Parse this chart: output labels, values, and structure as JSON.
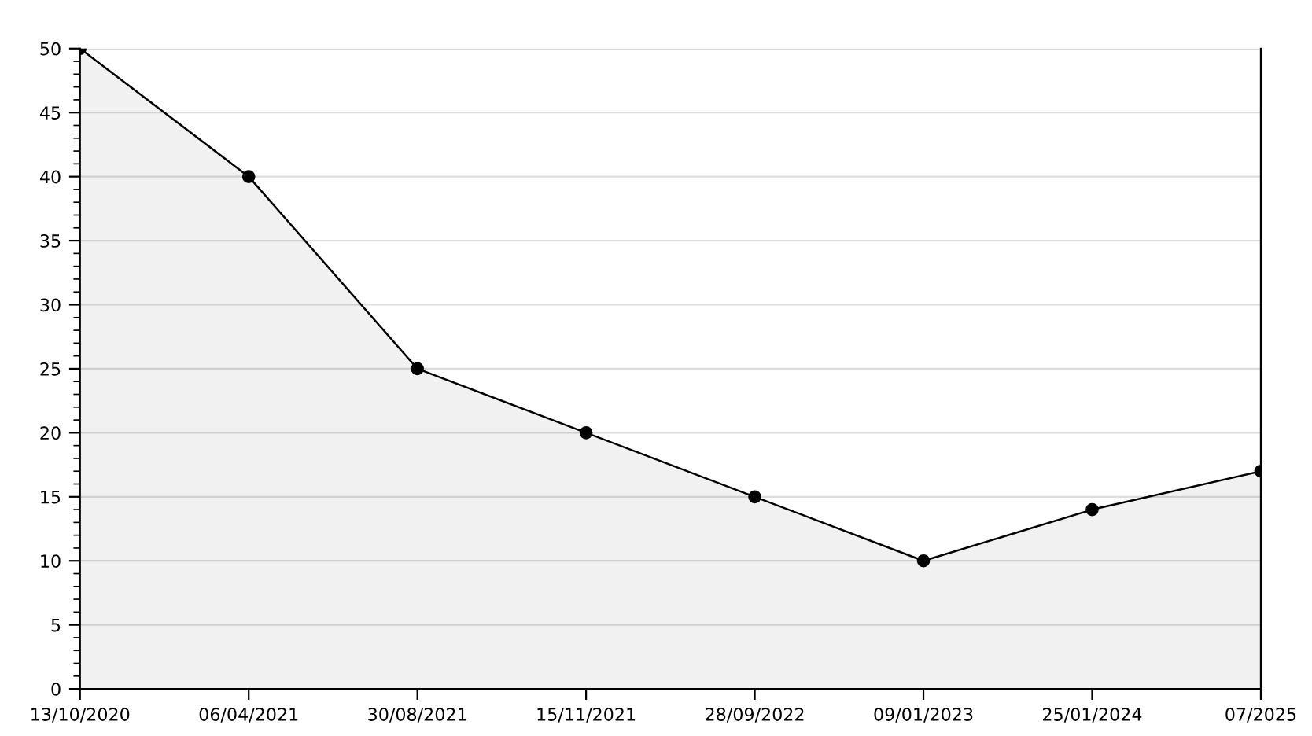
{
  "chart_data": {
    "type": "area",
    "categories": [
      "13/10/2020",
      "06/04/2021",
      "30/08/2021",
      "15/11/2021",
      "28/09/2022",
      "09/01/2023",
      "25/01/2024",
      "07/2025"
    ],
    "series": [
      {
        "color": "#000000",
        "values": [
          50,
          40,
          25,
          20,
          15,
          10,
          14,
          17
        ]
      }
    ],
    "ylim": [
      0,
      50
    ],
    "yticks": [
      0,
      5,
      10,
      15,
      20,
      25,
      30,
      35,
      40,
      45,
      50
    ],
    "grid": "y",
    "marker": "circle",
    "line_style": "solid"
  }
}
